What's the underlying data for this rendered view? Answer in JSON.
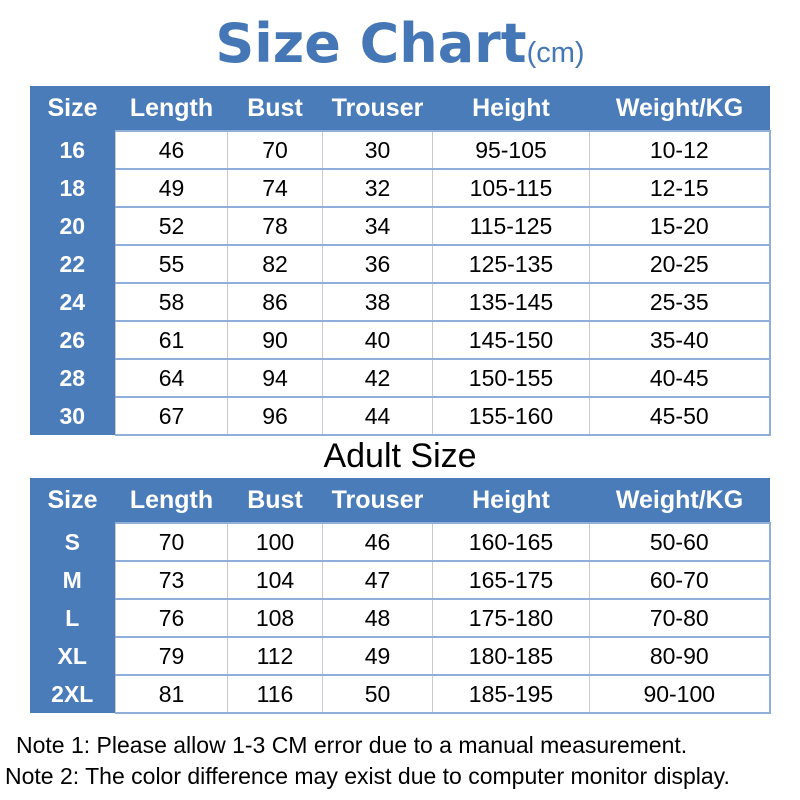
{
  "title": {
    "main": "Size Chart",
    "unit": "(cm)"
  },
  "adult_heading": "Adult Size",
  "notes": [
    "Note 1: Please allow 1-3 CM error due to a manual measurement.",
    "Note 2: The color difference may exist due to computer monitor display."
  ],
  "colors": {
    "accent_blue": "#4A7CBA",
    "title_blue": "#4577B7",
    "row_line_blue": "#8FAFD9",
    "column_line_gray": "#C6CBD4",
    "data_text": "#000000",
    "header_text": "#FFFFFF"
  },
  "chart_data": [
    {
      "type": "table",
      "title": "Size Chart(cm) - child sizes",
      "columns": [
        "Size",
        "Length",
        "Bust",
        "Trouser",
        "Height",
        "Weight/KG"
      ],
      "rows": [
        [
          "16",
          "46",
          "70",
          "30",
          "95-105",
          "10-12"
        ],
        [
          "18",
          "49",
          "74",
          "32",
          "105-115",
          "12-15"
        ],
        [
          "20",
          "52",
          "78",
          "34",
          "115-125",
          "15-20"
        ],
        [
          "22",
          "55",
          "82",
          "36",
          "125-135",
          "20-25"
        ],
        [
          "24",
          "58",
          "86",
          "38",
          "135-145",
          "25-35"
        ],
        [
          "26",
          "61",
          "90",
          "40",
          "145-150",
          "35-40"
        ],
        [
          "28",
          "64",
          "94",
          "42",
          "150-155",
          "40-45"
        ],
        [
          "30",
          "67",
          "96",
          "44",
          "155-160",
          "45-50"
        ]
      ]
    },
    {
      "type": "table",
      "title": "Adult Size",
      "columns": [
        "Size",
        "Length",
        "Bust",
        "Trouser",
        "Height",
        "Weight/KG"
      ],
      "rows": [
        [
          "S",
          "70",
          "100",
          "46",
          "160-165",
          "50-60"
        ],
        [
          "M",
          "73",
          "104",
          "47",
          "165-175",
          "60-70"
        ],
        [
          "L",
          "76",
          "108",
          "48",
          "175-180",
          "70-80"
        ],
        [
          "XL",
          "79",
          "112",
          "49",
          "180-185",
          "80-90"
        ],
        [
          "2XL",
          "81",
          "116",
          "50",
          "185-195",
          "90-100"
        ]
      ]
    }
  ]
}
